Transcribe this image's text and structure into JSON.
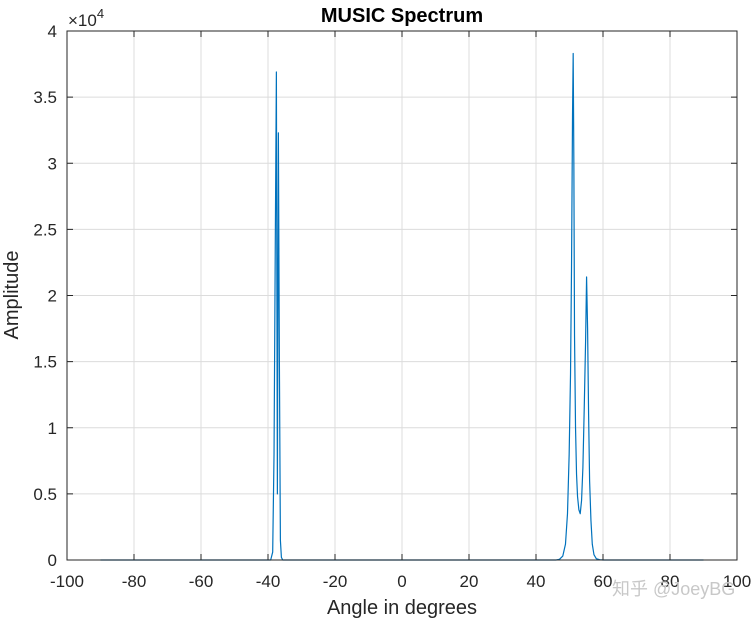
{
  "chart_data": {
    "type": "line",
    "title": "MUSIC Spectrum",
    "xlabel": "Angle in degrees",
    "ylabel": "Amplitude",
    "xlim": [
      -100,
      100
    ],
    "ylim": [
      0,
      40000
    ],
    "x_ticks": [
      -100,
      -80,
      -60,
      -40,
      -20,
      0,
      20,
      40,
      60,
      80,
      100
    ],
    "x_tick_labels": [
      "-100",
      "-80",
      "-60",
      "-40",
      "-20",
      "0",
      "20",
      "40",
      "60",
      "80",
      "100"
    ],
    "y_ticks": [
      0,
      5000,
      10000,
      15000,
      20000,
      25000,
      30000,
      35000,
      40000
    ],
    "y_tick_labels": [
      "0",
      "0.5",
      "1",
      "1.5",
      "2",
      "2.5",
      "3",
      "3.5",
      "4"
    ],
    "y_exponent_label": "×10",
    "y_exponent_power": "4",
    "grid": true,
    "line_color": "#0072bd",
    "series": [
      {
        "x": [
          -90,
          -39.2,
          -38.6,
          -38.2,
          -37.8,
          -37.5,
          -37.2,
          -36.9,
          -36.6,
          -36.3,
          -36.0,
          -35.6,
          -35.2,
          46,
          47,
          48,
          48.8,
          49.4,
          49.9,
          50.3,
          50.6,
          50.9,
          51.1,
          51.3,
          51.5,
          51.8,
          52.1,
          52.4,
          52.8,
          53.2,
          53.6,
          54.0,
          54.4,
          54.8,
          55.1,
          55.4,
          55.7,
          56.0,
          56.4,
          56.8,
          57.3,
          58.0,
          59.0,
          60.0,
          62.0,
          90
        ],
        "y": [
          0,
          0,
          600,
          8000,
          25000,
          36900,
          5000,
          32300,
          15000,
          1500,
          200,
          0,
          0,
          0,
          50,
          300,
          1200,
          3500,
          8000,
          14000,
          22000,
          33600,
          38300,
          30000,
          17000,
          10000,
          6500,
          4800,
          3800,
          3500,
          4500,
          7000,
          11500,
          16500,
          21400,
          17500,
          11000,
          6000,
          3000,
          1200,
          400,
          100,
          20,
          0,
          0,
          0
        ]
      }
    ]
  },
  "watermark": "知乎 @JoeyBG"
}
